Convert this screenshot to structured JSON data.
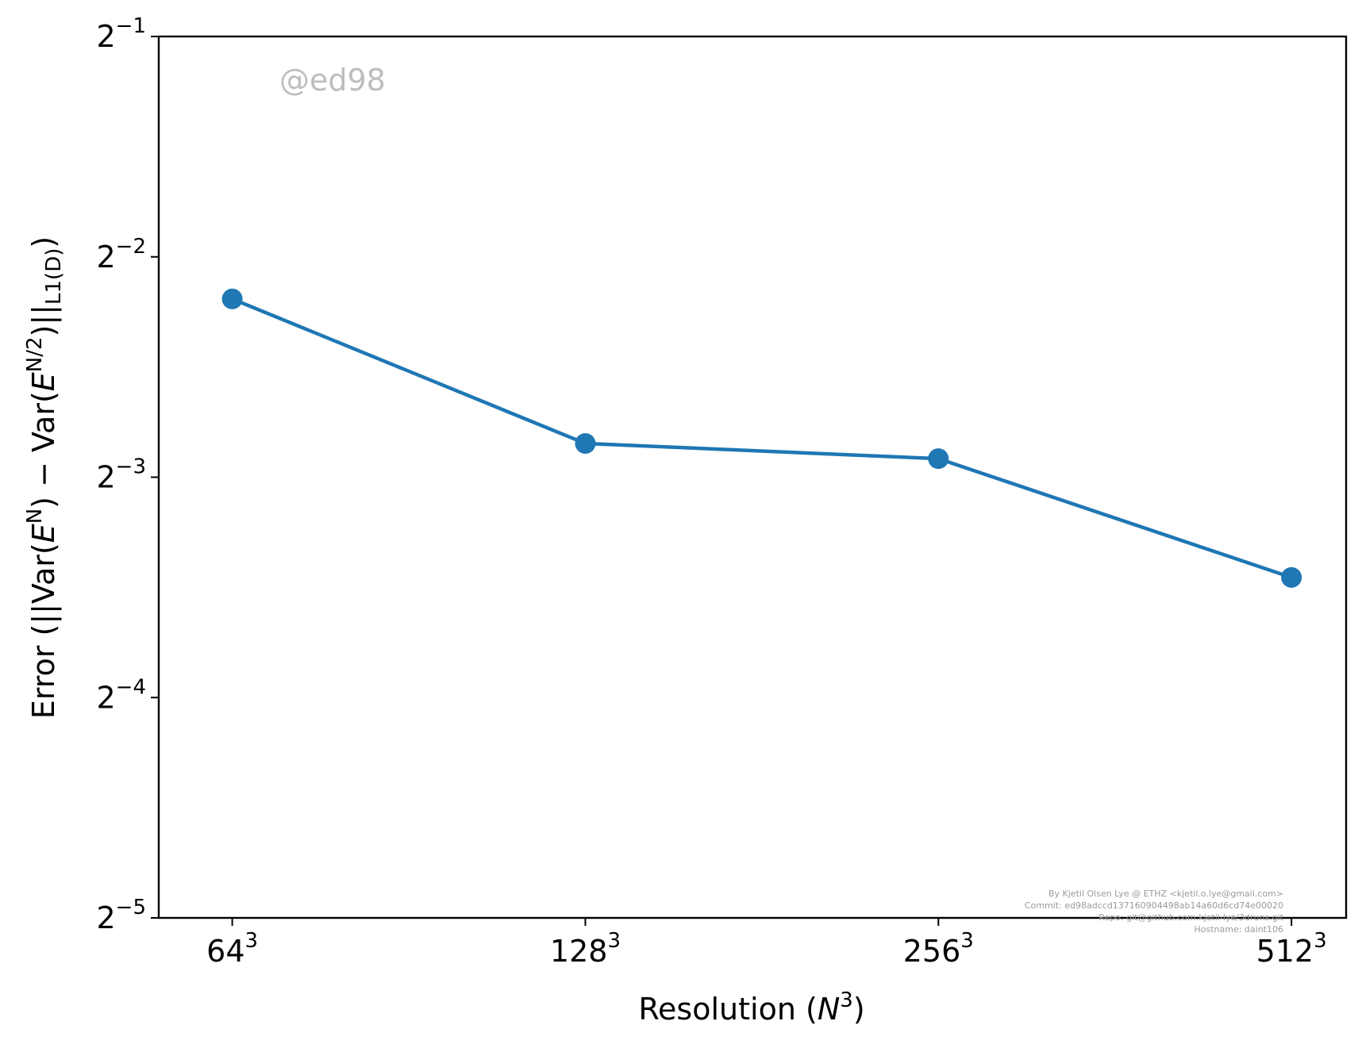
{
  "chart_data": {
    "type": "line",
    "xscale": "log2",
    "yscale": "log2",
    "x_ticks": [
      {
        "base": "64",
        "exp": "3",
        "value": 64
      },
      {
        "base": "128",
        "exp": "3",
        "value": 128
      },
      {
        "base": "256",
        "exp": "3",
        "value": 256
      },
      {
        "base": "512",
        "exp": "3",
        "value": 512
      }
    ],
    "y_ticks": [
      {
        "base": "2",
        "exp": "−1",
        "value": 0.5
      },
      {
        "base": "2",
        "exp": "−2",
        "value": 0.25
      },
      {
        "base": "2",
        "exp": "−3",
        "value": 0.125
      },
      {
        "base": "2",
        "exp": "−4",
        "value": 0.0625
      },
      {
        "base": "2",
        "exp": "−5",
        "value": 0.03125
      }
    ],
    "xlim": [
      55.4,
      570
    ],
    "ylim": [
      0.03125,
      0.5
    ],
    "series": [
      {
        "x": [
          64,
          128,
          256,
          512
        ],
        "y": [
          0.219,
          0.139,
          0.1325,
          0.0912
        ],
        "color": "#1f77b4",
        "marker": "circle"
      }
    ],
    "xlabel": {
      "text": "Resolution (",
      "var": "N",
      "exp": "3",
      "close": ")"
    },
    "ylabel": {
      "text": "Error (||Var(E^N) − Var(E^{N/2})||_{L^1(D)})"
    },
    "grid": false,
    "watermark": "@ed98",
    "info_lines": [
      "By Kjetil Olsen Lye @ ETHZ <kjetil.o.lye@gmail.com>",
      "Commit: ed98adccd137160904498ab14a60d6cd74e00020",
      "Repo: git@github.com:kjetil-lye/3druns.git",
      "Hostname: daint106"
    ]
  }
}
